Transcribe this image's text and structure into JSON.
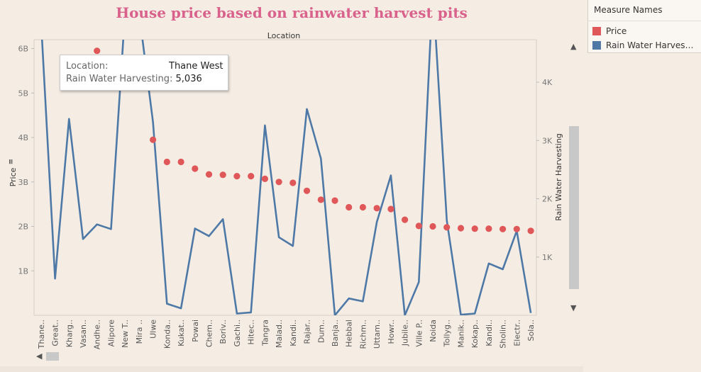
{
  "chart_data": {
    "type": "line+scatter",
    "title": "House price based on rainwater harvest pits",
    "top_label": "Location",
    "left_axis": {
      "label": "Price",
      "ticks": [
        {
          "v": 1,
          "label": "1B"
        },
        {
          "v": 2,
          "label": "2B"
        },
        {
          "v": 3,
          "label": "3B"
        },
        {
          "v": 4,
          "label": "4B"
        },
        {
          "v": 5,
          "label": "5B"
        },
        {
          "v": 6,
          "label": "6B"
        }
      ],
      "range": [
        0,
        6.2
      ]
    },
    "right_axis": {
      "label": "Rain Water Harvesting",
      "ticks": [
        {
          "v": 1000,
          "label": "1K"
        },
        {
          "v": 2000,
          "label": "2K"
        },
        {
          "v": 3000,
          "label": "3K"
        },
        {
          "v": 4000,
          "label": "4K"
        }
      ],
      "range": [
        0,
        4730
      ]
    },
    "categories": [
      "Thane..",
      "Great..",
      "Kharg..",
      "Vasan..",
      "Andhe..",
      "Alipore",
      "New T..",
      "Mira ..",
      "Ulwe",
      "Konda..",
      "Kukat..",
      "Powai",
      "Chem..",
      "Boriv..",
      "Gachi..",
      "Hitec..",
      "Tangra",
      "Malad..",
      "Kandi..",
      "Rajar..",
      "Dum..",
      "Banja..",
      "Hebbal",
      "Richm..",
      "Uttam..",
      "Howr..",
      "Jubile..",
      "Ville P..",
      "Noida",
      "Tollyg..",
      "Manik..",
      "Kokap..",
      "Kandi..",
      "Sholin..",
      "Electr..",
      "Sola.."
    ],
    "series": [
      {
        "name": "Price",
        "axis": "left",
        "color": "#e05759",
        "values": [
          null,
          null,
          null,
          null,
          5.95,
          null,
          null,
          null,
          3.95,
          3.45,
          3.45,
          3.3,
          3.17,
          3.16,
          3.13,
          3.13,
          3.07,
          3.0,
          2.98,
          2.8,
          2.6,
          2.58,
          2.43,
          2.43,
          2.41,
          2.39,
          2.15,
          2.01,
          2.0,
          1.98,
          1.96,
          1.95,
          1.95,
          1.94,
          1.94,
          1.9
        ]
      },
      {
        "name": "Rain Water Harvesting",
        "axis": "right",
        "color": "#4e79a7",
        "values": [
          5036,
          630,
          3370,
          1310,
          1560,
          1480,
          5200,
          5200,
          3320,
          200,
          120,
          1490,
          1360,
          1650,
          30,
          50,
          3260,
          1340,
          1190,
          3540,
          2690,
          0,
          290,
          240,
          1600,
          2400,
          0,
          570,
          5600,
          1630,
          10,
          30,
          890,
          790,
          1450,
          40
        ]
      }
    ]
  },
  "legend": {
    "title": "Measure Names",
    "items": [
      {
        "label": "Price",
        "color": "#e05759"
      },
      {
        "label": "Rain Water Harvesti..",
        "color": "#4e79a7"
      }
    ]
  },
  "tooltip": {
    "location_key": "Location:",
    "location_value": "Thane West",
    "rwh_key": "Rain Water Harvesting:",
    "rwh_value": "5,036"
  }
}
